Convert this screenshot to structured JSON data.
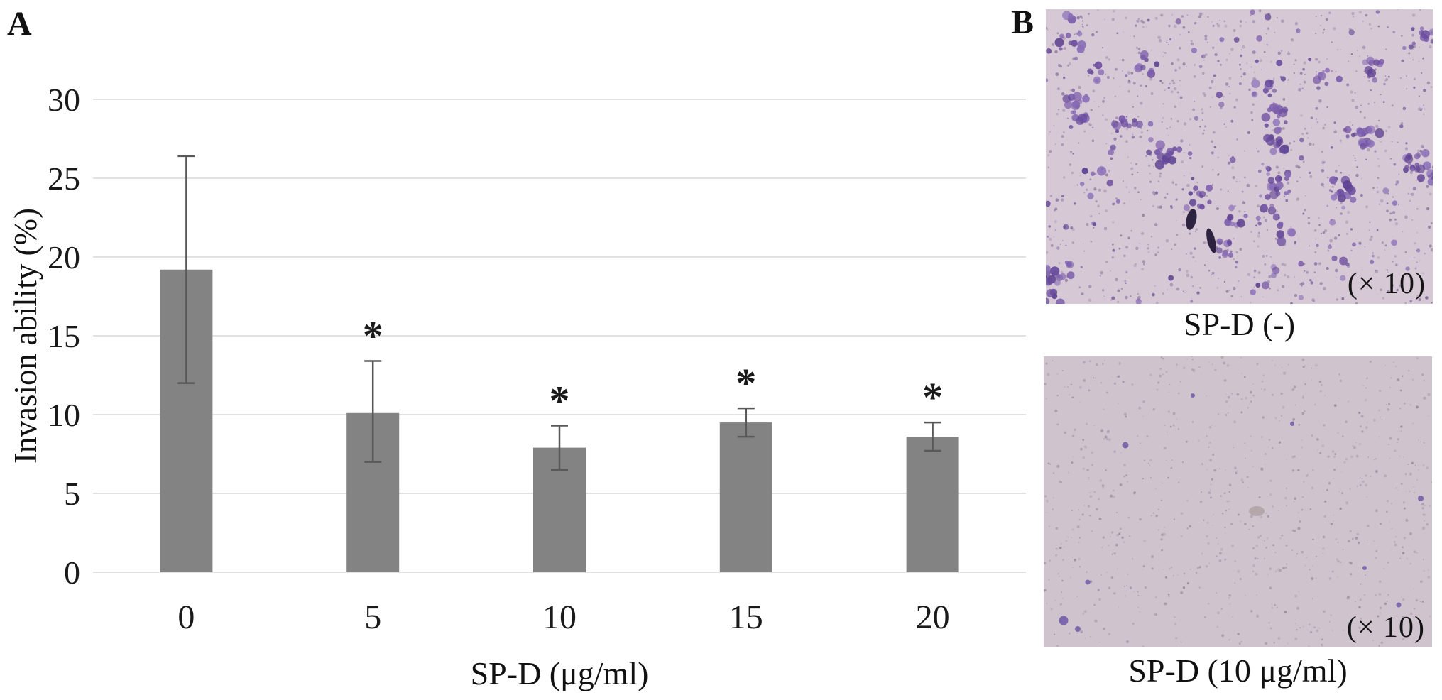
{
  "figure": {
    "panel_a_label": "A",
    "panel_b_label": "B"
  },
  "chart_data": {
    "type": "bar",
    "title": "",
    "xlabel": "SP-D (μg/ml)",
    "ylabel": "Invasion ability (%)",
    "categories": [
      "0",
      "5",
      "10",
      "15",
      "20"
    ],
    "values": [
      19.2,
      10.1,
      7.9,
      9.5,
      8.6
    ],
    "error_up": [
      7.2,
      3.3,
      1.4,
      0.9,
      0.9
    ],
    "error_down": [
      7.2,
      3.1,
      1.4,
      0.9,
      0.9
    ],
    "significance": [
      "",
      "*",
      "*",
      "*",
      "*"
    ],
    "ylim": [
      0,
      30
    ],
    "yticks": [
      0,
      5,
      10,
      15,
      20,
      25,
      30
    ],
    "grid": true,
    "legend": "none",
    "bar_color": "#838383",
    "error_color": "#595959",
    "gridline_color": "#e2e2e2",
    "tick_text_color": "#1a1a1a"
  },
  "panel_b": {
    "images": [
      {
        "caption": "SP-D (-)",
        "magnification": "(× 10)",
        "bg_color": "#d7c8d6",
        "dot_colors": [
          "#a08aa8",
          "#8d7a9e",
          "#77619c"
        ],
        "cluster_colors": [
          "#7b5cab",
          "#6b4c9e",
          "#8a6fb8",
          "#5f4392"
        ],
        "dark_blob_color": "#241a38",
        "density": "high"
      },
      {
        "caption": "SP-D (10 μg/ml)",
        "magnification": "(× 10)",
        "bg_color": "#cfc3ce",
        "dot_colors": [
          "#9a8ca2",
          "#8f8198",
          "#a79aad"
        ],
        "accent_color": "#7258a8",
        "smudge_color": "#8d7c74",
        "density": "low"
      }
    ]
  }
}
